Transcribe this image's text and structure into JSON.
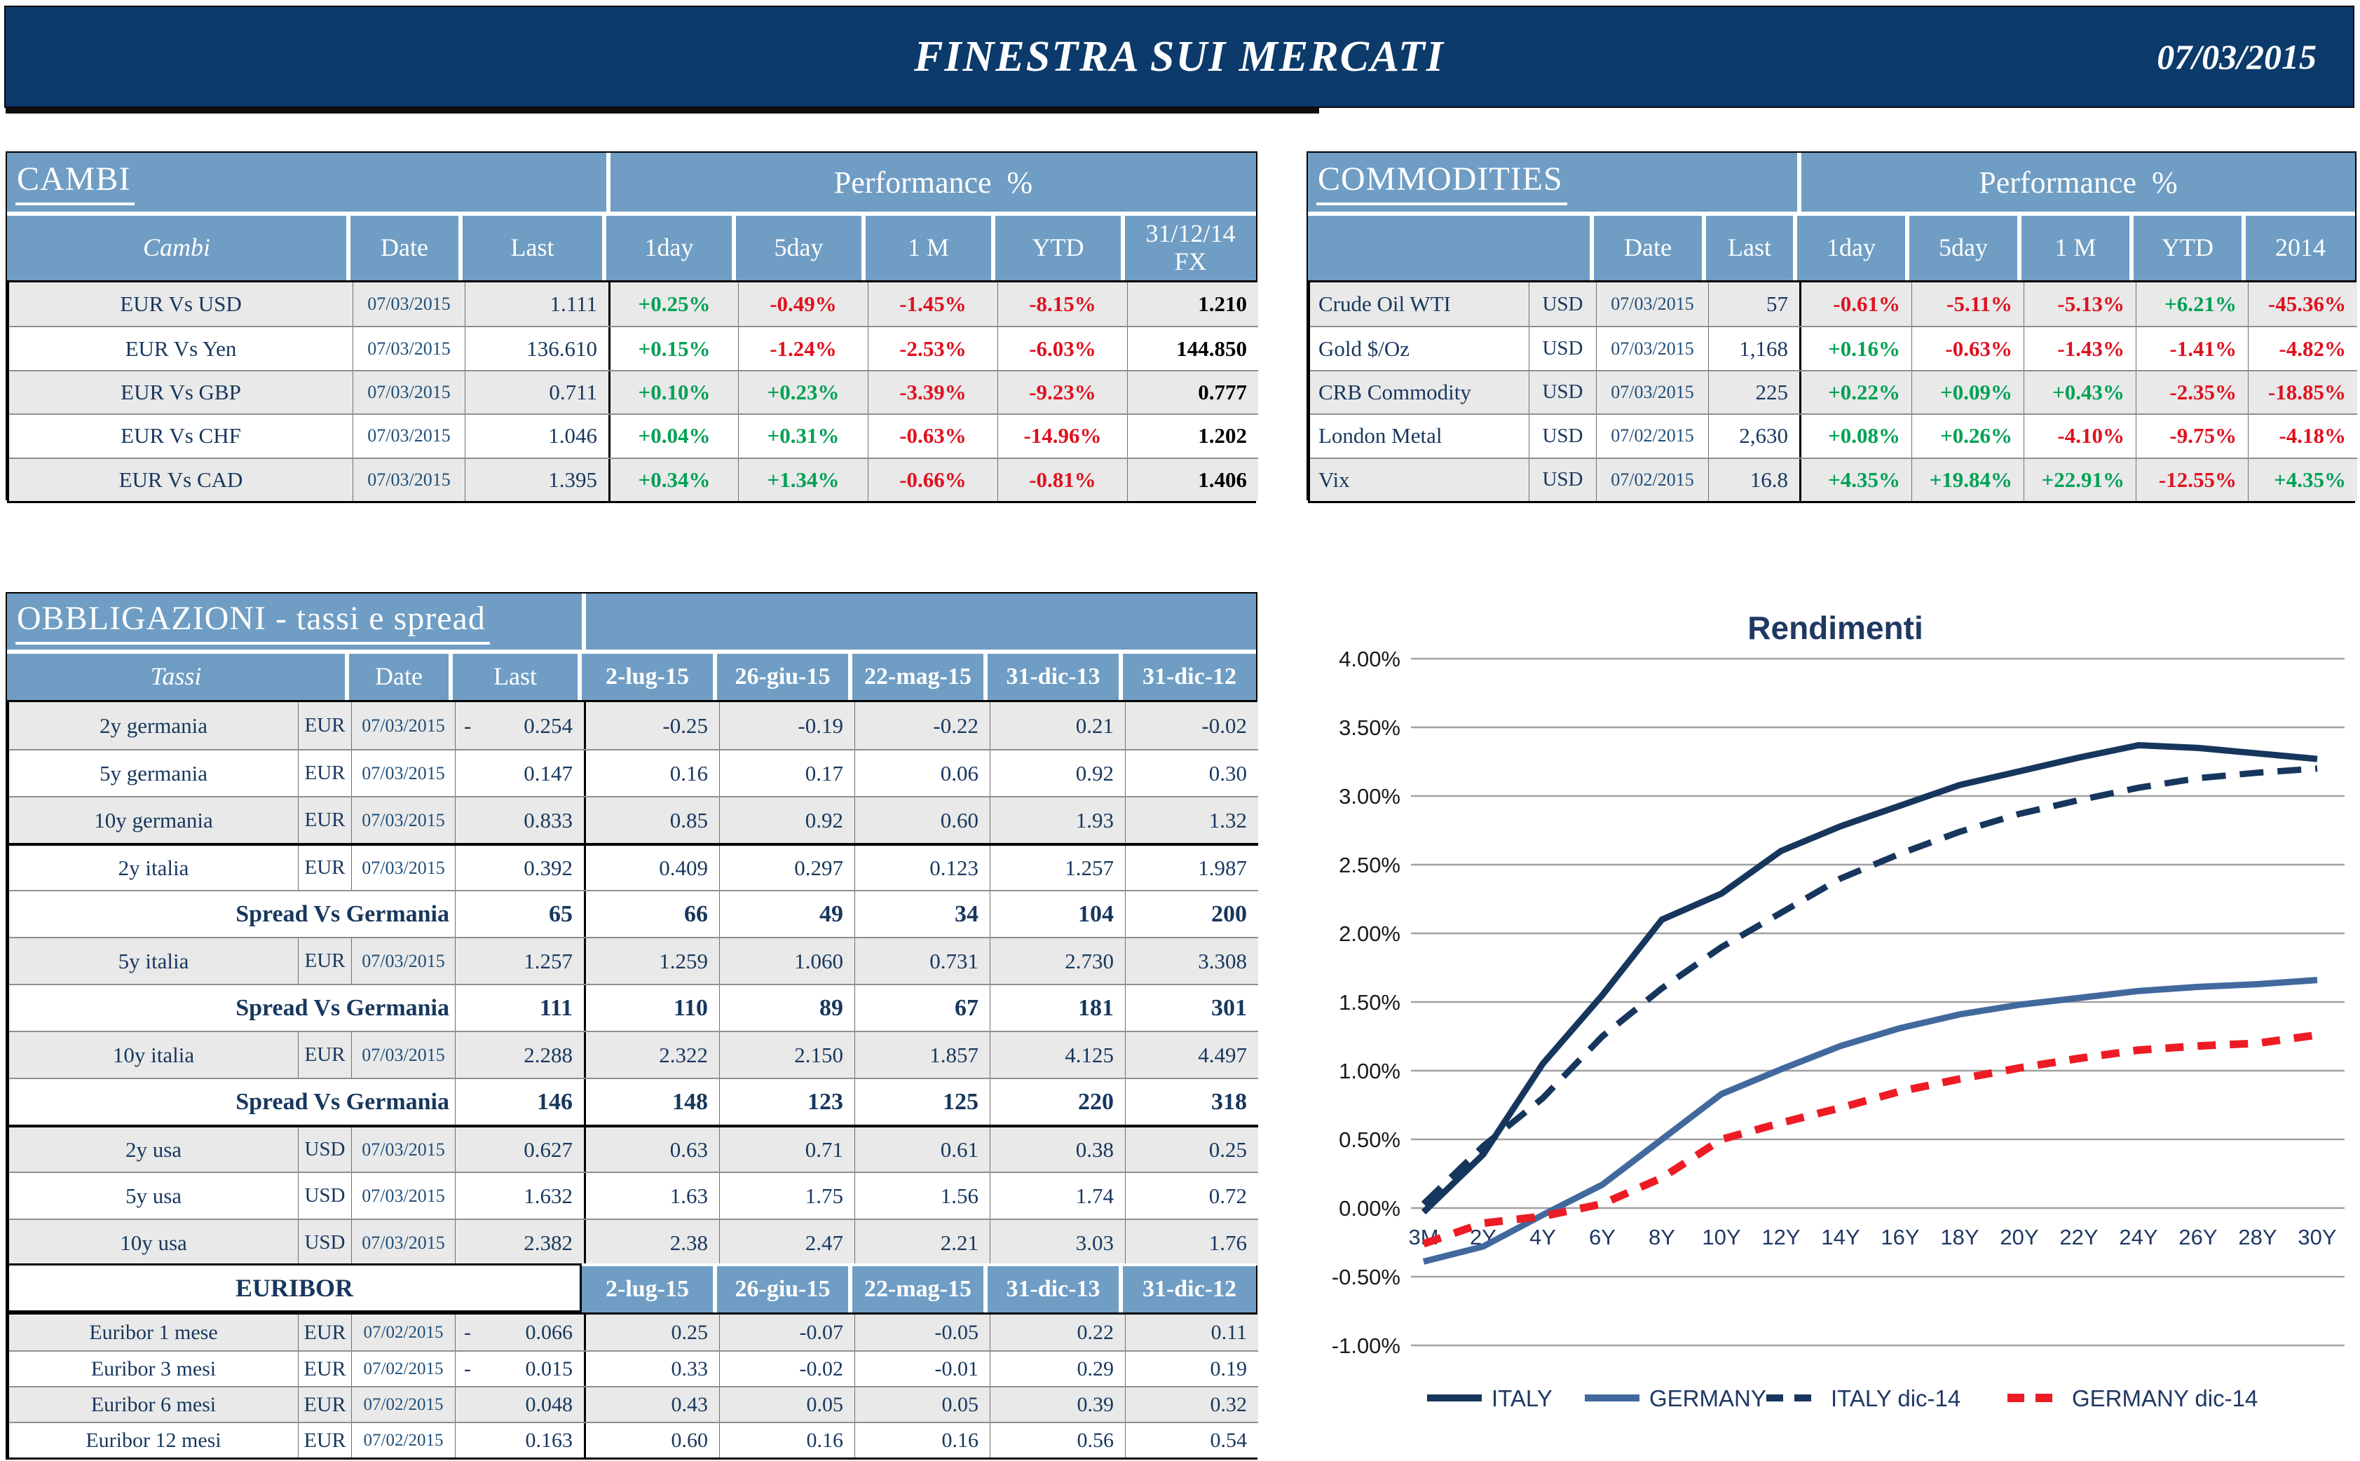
{
  "header": {
    "title": "FINESTRA SUI MERCATI",
    "date": "07/03/2015"
  },
  "colors": {
    "topbar": "#0b3a6b",
    "panel_blue": "#6f9dc4",
    "navy": "#17375e",
    "green": "#00a155",
    "red": "#e0111f",
    "row_gray": "#e9e9e9"
  },
  "cambi": {
    "title": "CAMBI",
    "performance_header": "Performance  %",
    "columns": [
      "Cambi",
      "Date",
      "Last",
      "1day",
      "5day",
      "1 M",
      "YTD",
      "31/12/14\nFX"
    ],
    "rows": [
      {
        "name": "EUR Vs USD",
        "date": "07/03/2015",
        "last": "1.111",
        "perf": [
          "+0.25%",
          "-0.49%",
          "-1.45%",
          "-8.15%"
        ],
        "fx": "1.210"
      },
      {
        "name": "EUR Vs Yen",
        "date": "07/03/2015",
        "last": "136.610",
        "perf": [
          "+0.15%",
          "-1.24%",
          "-2.53%",
          "-6.03%"
        ],
        "fx": "144.850"
      },
      {
        "name": "EUR Vs GBP",
        "date": "07/03/2015",
        "last": "0.711",
        "perf": [
          "+0.10%",
          "+0.23%",
          "-3.39%",
          "-9.23%"
        ],
        "fx": "0.777"
      },
      {
        "name": "EUR Vs CHF",
        "date": "07/03/2015",
        "last": "1.046",
        "perf": [
          "+0.04%",
          "+0.31%",
          "-0.63%",
          "-14.96%"
        ],
        "fx": "1.202"
      },
      {
        "name": "EUR Vs CAD",
        "date": "07/03/2015",
        "last": "1.395",
        "perf": [
          "+0.34%",
          "+1.34%",
          "-0.66%",
          "-0.81%"
        ],
        "fx": "1.406"
      }
    ]
  },
  "commodities": {
    "title": "COMMODITIES",
    "performance_header": "Performance  %",
    "columns": [
      "",
      "Date",
      "Last",
      "1day",
      "5day",
      "1 M",
      "YTD",
      "2014"
    ],
    "rows": [
      {
        "name": "Crude Oil WTI",
        "ccy": "USD",
        "date": "07/03/2015",
        "last": "57",
        "perf": [
          "-0.61%",
          "-5.11%",
          "-5.13%",
          "+6.21%",
          "-45.36%"
        ]
      },
      {
        "name": "Gold $/Oz",
        "ccy": "USD",
        "date": "07/03/2015",
        "last": "1,168",
        "perf": [
          "+0.16%",
          "-0.63%",
          "-1.43%",
          "-1.41%",
          "-4.82%"
        ]
      },
      {
        "name": "CRB Commodity",
        "ccy": "USD",
        "date": "07/03/2015",
        "last": "225",
        "perf": [
          "+0.22%",
          "+0.09%",
          "+0.43%",
          "-2.35%",
          "-18.85%"
        ]
      },
      {
        "name": "London Metal",
        "ccy": "USD",
        "date": "07/02/2015",
        "last": "2,630",
        "perf": [
          "+0.08%",
          "+0.26%",
          "-4.10%",
          "-9.75%",
          "-4.18%"
        ]
      },
      {
        "name": "Vix",
        "ccy": "USD",
        "date": "07/02/2015",
        "last": "16.8",
        "perf": [
          "+4.35%",
          "+19.84%",
          "+22.91%",
          "-12.55%",
          "+4.35%"
        ]
      }
    ]
  },
  "obbligazioni": {
    "title": "OBBLIGAZIONI - tassi e spread",
    "columns": [
      "Tassi",
      "Date",
      "Last",
      "2-lug-15",
      "26-giu-15",
      "22-mag-15",
      "31-dic-13",
      "31-dic-12"
    ],
    "rows": [
      {
        "type": "rate",
        "name": "2y germania",
        "ccy": "EUR",
        "date": "07/03/2015",
        "last": "0.254",
        "last_neg": true,
        "values": [
          "-0.25",
          "-0.19",
          "-0.22",
          "0.21",
          "-0.02"
        ],
        "gray": true
      },
      {
        "type": "rate",
        "name": "5y germania",
        "ccy": "EUR",
        "date": "07/03/2015",
        "last": "0.147",
        "last_neg": false,
        "values": [
          "0.16",
          "0.17",
          "0.06",
          "0.92",
          "0.30"
        ],
        "gray": false
      },
      {
        "type": "rate",
        "name": "10y germania",
        "ccy": "EUR",
        "date": "07/03/2015",
        "last": "0.833",
        "last_neg": false,
        "values": [
          "0.85",
          "0.92",
          "0.60",
          "1.93",
          "1.32"
        ],
        "gray": true
      },
      {
        "type": "rate",
        "name": "2y italia",
        "ccy": "EUR",
        "date": "07/03/2015",
        "last": "0.392",
        "last_neg": false,
        "values": [
          "0.409",
          "0.297",
          "0.123",
          "1.257",
          "1.987"
        ],
        "gray": false,
        "thick_top": true
      },
      {
        "type": "spread",
        "label": "Spread Vs Germania",
        "last": "65",
        "values": [
          "66",
          "49",
          "34",
          "104",
          "200"
        ],
        "gray": false
      },
      {
        "type": "rate",
        "name": "5y italia",
        "ccy": "EUR",
        "date": "07/03/2015",
        "last": "1.257",
        "last_neg": false,
        "values": [
          "1.259",
          "1.060",
          "0.731",
          "2.730",
          "3.308"
        ],
        "gray": true
      },
      {
        "type": "spread",
        "label": "Spread Vs Germania",
        "last": "111",
        "values": [
          "110",
          "89",
          "67",
          "181",
          "301"
        ],
        "gray": false
      },
      {
        "type": "rate",
        "name": "10y italia",
        "ccy": "EUR",
        "date": "07/03/2015",
        "last": "2.288",
        "last_neg": false,
        "values": [
          "2.322",
          "2.150",
          "1.857",
          "4.125",
          "4.497"
        ],
        "gray": true
      },
      {
        "type": "spread",
        "label": "Spread Vs Germania",
        "last": "146",
        "values": [
          "148",
          "123",
          "125",
          "220",
          "318"
        ],
        "gray": false
      },
      {
        "type": "rate",
        "name": "2y usa",
        "ccy": "USD",
        "date": "07/03/2015",
        "last": "0.627",
        "last_neg": false,
        "values": [
          "0.63",
          "0.71",
          "0.61",
          "0.38",
          "0.25"
        ],
        "gray": true,
        "thick_top": true
      },
      {
        "type": "rate",
        "name": "5y usa",
        "ccy": "USD",
        "date": "07/03/2015",
        "last": "1.632",
        "last_neg": false,
        "values": [
          "1.63",
          "1.75",
          "1.56",
          "1.74",
          "0.72"
        ],
        "gray": false
      },
      {
        "type": "rate",
        "name": "10y usa",
        "ccy": "USD",
        "date": "07/03/2015",
        "last": "2.382",
        "last_neg": false,
        "values": [
          "2.38",
          "2.47",
          "2.21",
          "3.03",
          "1.76"
        ],
        "gray": true
      }
    ],
    "euribor": {
      "label": "EURIBOR",
      "columns": [
        "2-lug-15",
        "26-giu-15",
        "22-mag-15",
        "31-dic-13",
        "31-dic-12"
      ],
      "rows": [
        {
          "name": "Euribor 1 mese",
          "ccy": "EUR",
          "date": "07/02/2015",
          "last": "0.066",
          "last_neg": true,
          "values": [
            "0.25",
            "-0.07",
            "-0.05",
            "0.22",
            "0.11"
          ],
          "gray": true
        },
        {
          "name": "Euribor 3 mesi",
          "ccy": "EUR",
          "date": "07/02/2015",
          "last": "0.015",
          "last_neg": true,
          "values": [
            "0.33",
            "-0.02",
            "-0.01",
            "0.29",
            "0.19"
          ],
          "gray": false
        },
        {
          "name": "Euribor 6 mesi",
          "ccy": "EUR",
          "date": "07/02/2015",
          "last": "0.048",
          "last_neg": false,
          "values": [
            "0.43",
            "0.05",
            "0.05",
            "0.39",
            "0.32"
          ],
          "gray": true
        },
        {
          "name": "Euribor 12 mesi",
          "ccy": "EUR",
          "date": "07/02/2015",
          "last": "0.163",
          "last_neg": false,
          "values": [
            "0.60",
            "0.16",
            "0.16",
            "0.56",
            "0.54"
          ],
          "gray": false
        }
      ]
    }
  },
  "chart_data": {
    "type": "line",
    "title": "Rendimenti",
    "x_labels": [
      "3M",
      "2Y",
      "4Y",
      "6Y",
      "8Y",
      "10Y",
      "12Y",
      "14Y",
      "16Y",
      "18Y",
      "20Y",
      "22Y",
      "24Y",
      "26Y",
      "28Y",
      "30Y"
    ],
    "y_ticks": [
      "4.00%",
      "3.50%",
      "3.00%",
      "2.50%",
      "2.00%",
      "1.50%",
      "1.00%",
      "0.50%",
      "0.00%",
      "-0.50%",
      "-1.00%"
    ],
    "ylim": [
      -1.0,
      4.0
    ],
    "grid": true,
    "legend_position": "bottom",
    "series": [
      {
        "name": "ITALY",
        "color": "#17365d",
        "dash": "solid",
        "values": [
          -0.03,
          0.39,
          1.05,
          1.55,
          2.1,
          2.29,
          2.6,
          2.78,
          2.93,
          3.08,
          3.18,
          3.28,
          3.37,
          3.35,
          3.31,
          3.27
        ]
      },
      {
        "name": "GERMANY",
        "color": "#41699e",
        "dash": "solid",
        "values": [
          -0.39,
          -0.28,
          -0.05,
          0.17,
          0.5,
          0.83,
          1.01,
          1.18,
          1.31,
          1.41,
          1.48,
          1.53,
          1.58,
          1.61,
          1.63,
          1.66
        ]
      },
      {
        "name": "ITALY dic-14",
        "color": "#17365d",
        "dash": "dashed",
        "values": [
          0.03,
          0.45,
          0.8,
          1.25,
          1.6,
          1.9,
          2.15,
          2.4,
          2.58,
          2.74,
          2.87,
          2.97,
          3.06,
          3.13,
          3.17,
          3.2
        ]
      },
      {
        "name": "GERMANY dic-14",
        "color": "#ed1c24",
        "dash": "dashed",
        "values": [
          -0.26,
          -0.11,
          -0.06,
          0.03,
          0.22,
          0.5,
          0.62,
          0.73,
          0.85,
          0.94,
          1.02,
          1.09,
          1.15,
          1.18,
          1.2,
          1.26
        ]
      }
    ]
  }
}
